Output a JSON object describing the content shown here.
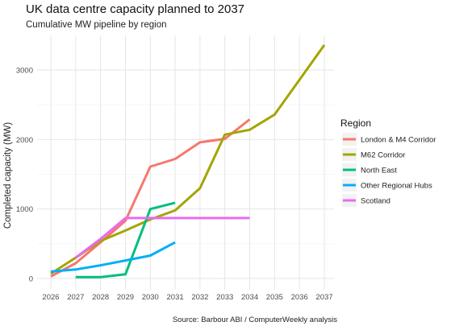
{
  "chart_data": {
    "type": "line",
    "title": "UK data centre capacity planned to 2037",
    "subtitle": "Cumulative MW pipeline by region",
    "xlabel": "",
    "ylabel": "Completed capacity (MW)",
    "caption": "Source: Barbour ABI / ComputerWeekly analysis",
    "x": [
      2026,
      2027,
      2028,
      2029,
      2030,
      2031,
      2032,
      2033,
      2034,
      2035,
      2036,
      2037
    ],
    "xlim": [
      2026,
      2037
    ],
    "ylim": [
      0,
      3400
    ],
    "yticks": [
      0,
      1000,
      2000,
      3000
    ],
    "grid": true,
    "legend": {
      "title": "Region",
      "position": "right"
    },
    "series": [
      {
        "name": "London & M4 Corridor",
        "color": "#F8766D",
        "points": [
          [
            2026,
            30
          ],
          [
            2027,
            220
          ],
          [
            2028,
            520
          ],
          [
            2029,
            830
          ],
          [
            2030,
            1610
          ],
          [
            2031,
            1720
          ],
          [
            2032,
            1960
          ],
          [
            2033,
            2010
          ],
          [
            2034,
            2290
          ]
        ]
      },
      {
        "name": "M62 Corridor",
        "color": "#A3A500",
        "points": [
          [
            2026,
            70
          ],
          [
            2027,
            300
          ],
          [
            2028,
            540
          ],
          [
            2029,
            690
          ],
          [
            2030,
            850
          ],
          [
            2031,
            980
          ],
          [
            2032,
            1300
          ],
          [
            2033,
            2070
          ],
          [
            2034,
            2140
          ],
          [
            2035,
            2360
          ],
          [
            2036,
            2860
          ],
          [
            2037,
            3360
          ]
        ]
      },
      {
        "name": "North East",
        "color": "#00BF7D",
        "points": [
          [
            2027,
            20
          ],
          [
            2028,
            20
          ],
          [
            2029,
            60
          ],
          [
            2030,
            1000
          ],
          [
            2031,
            1090
          ]
        ]
      },
      {
        "name": "Other Regional Hubs",
        "color": "#00B0F6",
        "points": [
          [
            2026,
            100
          ],
          [
            2027,
            130
          ],
          [
            2028,
            190
          ],
          [
            2029,
            260
          ],
          [
            2030,
            330
          ],
          [
            2031,
            520
          ]
        ]
      },
      {
        "name": "Scotland",
        "color": "#E76BF3",
        "points": [
          [
            2027,
            300
          ],
          [
            2028,
            570
          ],
          [
            2029,
            870
          ],
          [
            2030,
            870
          ],
          [
            2031,
            870
          ],
          [
            2032,
            870
          ],
          [
            2033,
            870
          ],
          [
            2034,
            870
          ]
        ]
      }
    ]
  }
}
